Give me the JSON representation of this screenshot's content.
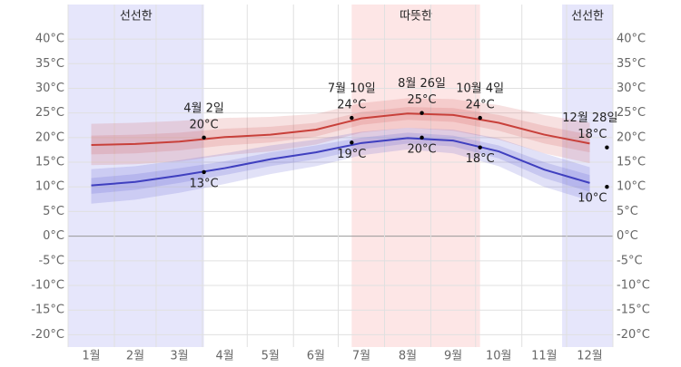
{
  "chart_data": {
    "type": "line",
    "categories": [
      "1월",
      "2월",
      "3월",
      "4월",
      "5월",
      "6월",
      "7월",
      "8월",
      "9월",
      "10월",
      "11월",
      "12월"
    ],
    "ylim": [
      -22.5,
      47
    ],
    "yticks": [
      {
        "value": 40,
        "label": "40°C"
      },
      {
        "value": 35,
        "label": "35°C"
      },
      {
        "value": 30,
        "label": "30°C"
      },
      {
        "value": 25,
        "label": "25°C"
      },
      {
        "value": 20,
        "label": "20°C"
      },
      {
        "value": 15,
        "label": "15°C"
      },
      {
        "value": 10,
        "label": "10°C"
      },
      {
        "value": 5,
        "label": "5°C"
      },
      {
        "value": 0,
        "label": "0°C"
      },
      {
        "value": -5,
        "label": "-5°C"
      },
      {
        "value": -10,
        "label": "-10°C"
      },
      {
        "value": -15,
        "label": "-15°C"
      },
      {
        "value": -20,
        "label": "-20°C"
      }
    ],
    "grid": true,
    "seasons": [
      {
        "label": "선선한",
        "color": "#e6e6fb",
        "from": {
          "month": 1,
          "day": 1
        },
        "to": {
          "month": 4,
          "day": 2
        }
      },
      {
        "label": "따뜻한",
        "color": "#fde6e6",
        "from": {
          "month": 7,
          "day": 10
        },
        "to": {
          "month": 10,
          "day": 4
        }
      },
      {
        "label": "선선한",
        "color": "#e6e6fb",
        "from": {
          "month": 11,
          "day": 28
        },
        "to": {
          "month": 12,
          "day": 31
        }
      }
    ],
    "series": [
      {
        "color": "#c8403a",
        "band_color": "rgba(205,70,70,0.16)",
        "values": [
          18.5,
          18.7,
          19.2,
          20.1,
          20.6,
          21.6,
          23.9,
          24.9,
          24.6,
          23.0,
          20.6,
          18.8
        ],
        "outer_upper": [
          22.8,
          23.0,
          23.4,
          24.0,
          24.2,
          24.8,
          27.0,
          28.0,
          27.8,
          26.6,
          24.6,
          23.0
        ],
        "outer_lower": [
          14.4,
          14.6,
          15.2,
          16.4,
          17.2,
          18.6,
          21.0,
          22.0,
          21.4,
          19.6,
          16.8,
          14.8
        ],
        "inner_upper": [
          20.4,
          20.6,
          21.0,
          21.8,
          22.2,
          23.0,
          25.2,
          26.2,
          26.0,
          24.6,
          22.4,
          20.6
        ],
        "inner_lower": [
          16.6,
          16.8,
          17.4,
          18.4,
          19.0,
          20.2,
          22.6,
          23.6,
          23.2,
          21.4,
          18.8,
          17.0
        ]
      },
      {
        "color": "#3f3fbf",
        "band_color": "rgba(70,70,205,0.16)",
        "values": [
          10.3,
          11.0,
          12.3,
          13.8,
          15.6,
          17.0,
          18.9,
          19.9,
          19.4,
          17.2,
          13.5,
          10.8
        ],
        "outer_upper": [
          13.6,
          14.2,
          15.4,
          16.8,
          18.4,
          19.6,
          21.2,
          22.0,
          21.6,
          19.8,
          16.8,
          14.0
        ],
        "outer_lower": [
          6.6,
          7.4,
          8.8,
          10.6,
          12.6,
          14.2,
          16.4,
          17.6,
          16.8,
          14.2,
          10.0,
          7.2
        ],
        "inner_upper": [
          11.8,
          12.6,
          13.8,
          15.2,
          17.0,
          18.4,
          20.0,
          21.0,
          20.4,
          18.4,
          15.0,
          12.4
        ],
        "inner_lower": [
          8.6,
          9.4,
          10.8,
          12.4,
          14.2,
          15.6,
          17.6,
          18.8,
          18.2,
          15.8,
          11.8,
          9.0
        ]
      }
    ],
    "annotations": [
      {
        "label": "4월 2일",
        "month": 4,
        "day": 2,
        "high": 20,
        "high_label": "20°C",
        "low": 13,
        "low_label": "13°C"
      },
      {
        "label": "7월 10일",
        "month": 7,
        "day": 10,
        "high": 24,
        "high_label": "24°C",
        "low": 19,
        "low_label": "19°C"
      },
      {
        "label": "8월 26일",
        "month": 8,
        "day": 26,
        "high": 25,
        "high_label": "25°C",
        "low": 20,
        "low_label": "20°C"
      },
      {
        "label": "10월 4일",
        "month": 10,
        "day": 4,
        "high": 24,
        "high_label": "24°C",
        "low": 18,
        "low_label": "18°C"
      },
      {
        "label": "12월 28일",
        "month": 12,
        "day": 28,
        "high": 18,
        "high_label": "18°C",
        "low": 10,
        "low_label": "10°C"
      }
    ]
  }
}
